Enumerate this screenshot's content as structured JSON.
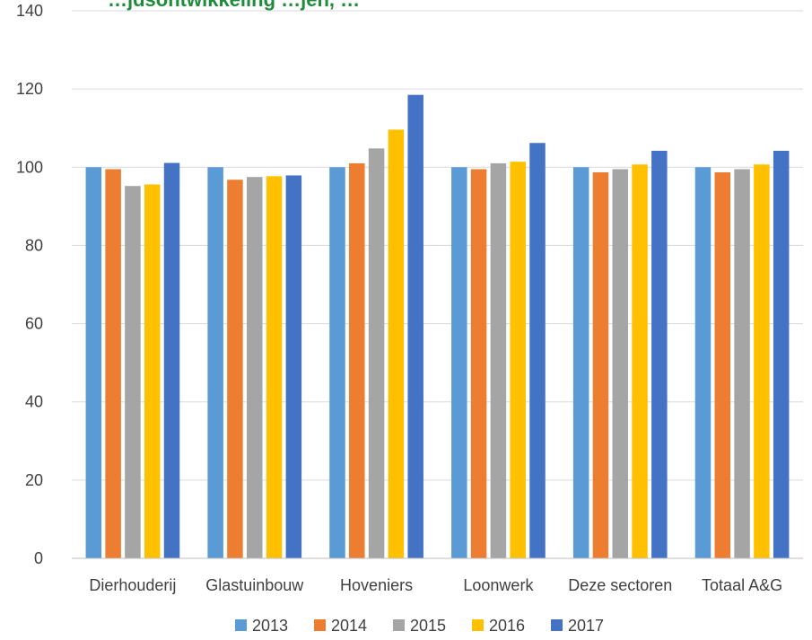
{
  "chart_data": {
    "type": "bar",
    "title": "…jdsontwikkeling …jen, …",
    "categories": [
      "Dierhouderij",
      "Glastuinbouw",
      "Hoveniers",
      "Loonwerk",
      "Deze sectoren",
      "Totaal A&G"
    ],
    "series": [
      {
        "name": "2013",
        "color": "#5b9bd5",
        "values": [
          100,
          100,
          100,
          100,
          100,
          100
        ]
      },
      {
        "name": "2014",
        "color": "#ed7d31",
        "values": [
          99.5,
          96.8,
          101,
          99.5,
          98.7,
          98.7
        ]
      },
      {
        "name": "2015",
        "color": "#a5a5a5",
        "values": [
          95.2,
          97.5,
          104.8,
          101,
          99.5,
          99.5
        ]
      },
      {
        "name": "2016",
        "color": "#ffc000",
        "values": [
          95.6,
          97.7,
          109.6,
          101.4,
          100.7,
          100.7
        ]
      },
      {
        "name": "2017",
        "color": "#4472c4",
        "values": [
          101.1,
          97.9,
          118.5,
          106.2,
          104.2,
          104.2
        ]
      }
    ],
    "ylim": [
      0,
      140
    ],
    "yticks": [
      0,
      20,
      40,
      60,
      80,
      100,
      120,
      140
    ],
    "grid": true,
    "legend": "bottom",
    "title_color": "#1e8c3a",
    "gridline_color": "#d9d9d9",
    "axis_color": "#bfbfbf"
  }
}
